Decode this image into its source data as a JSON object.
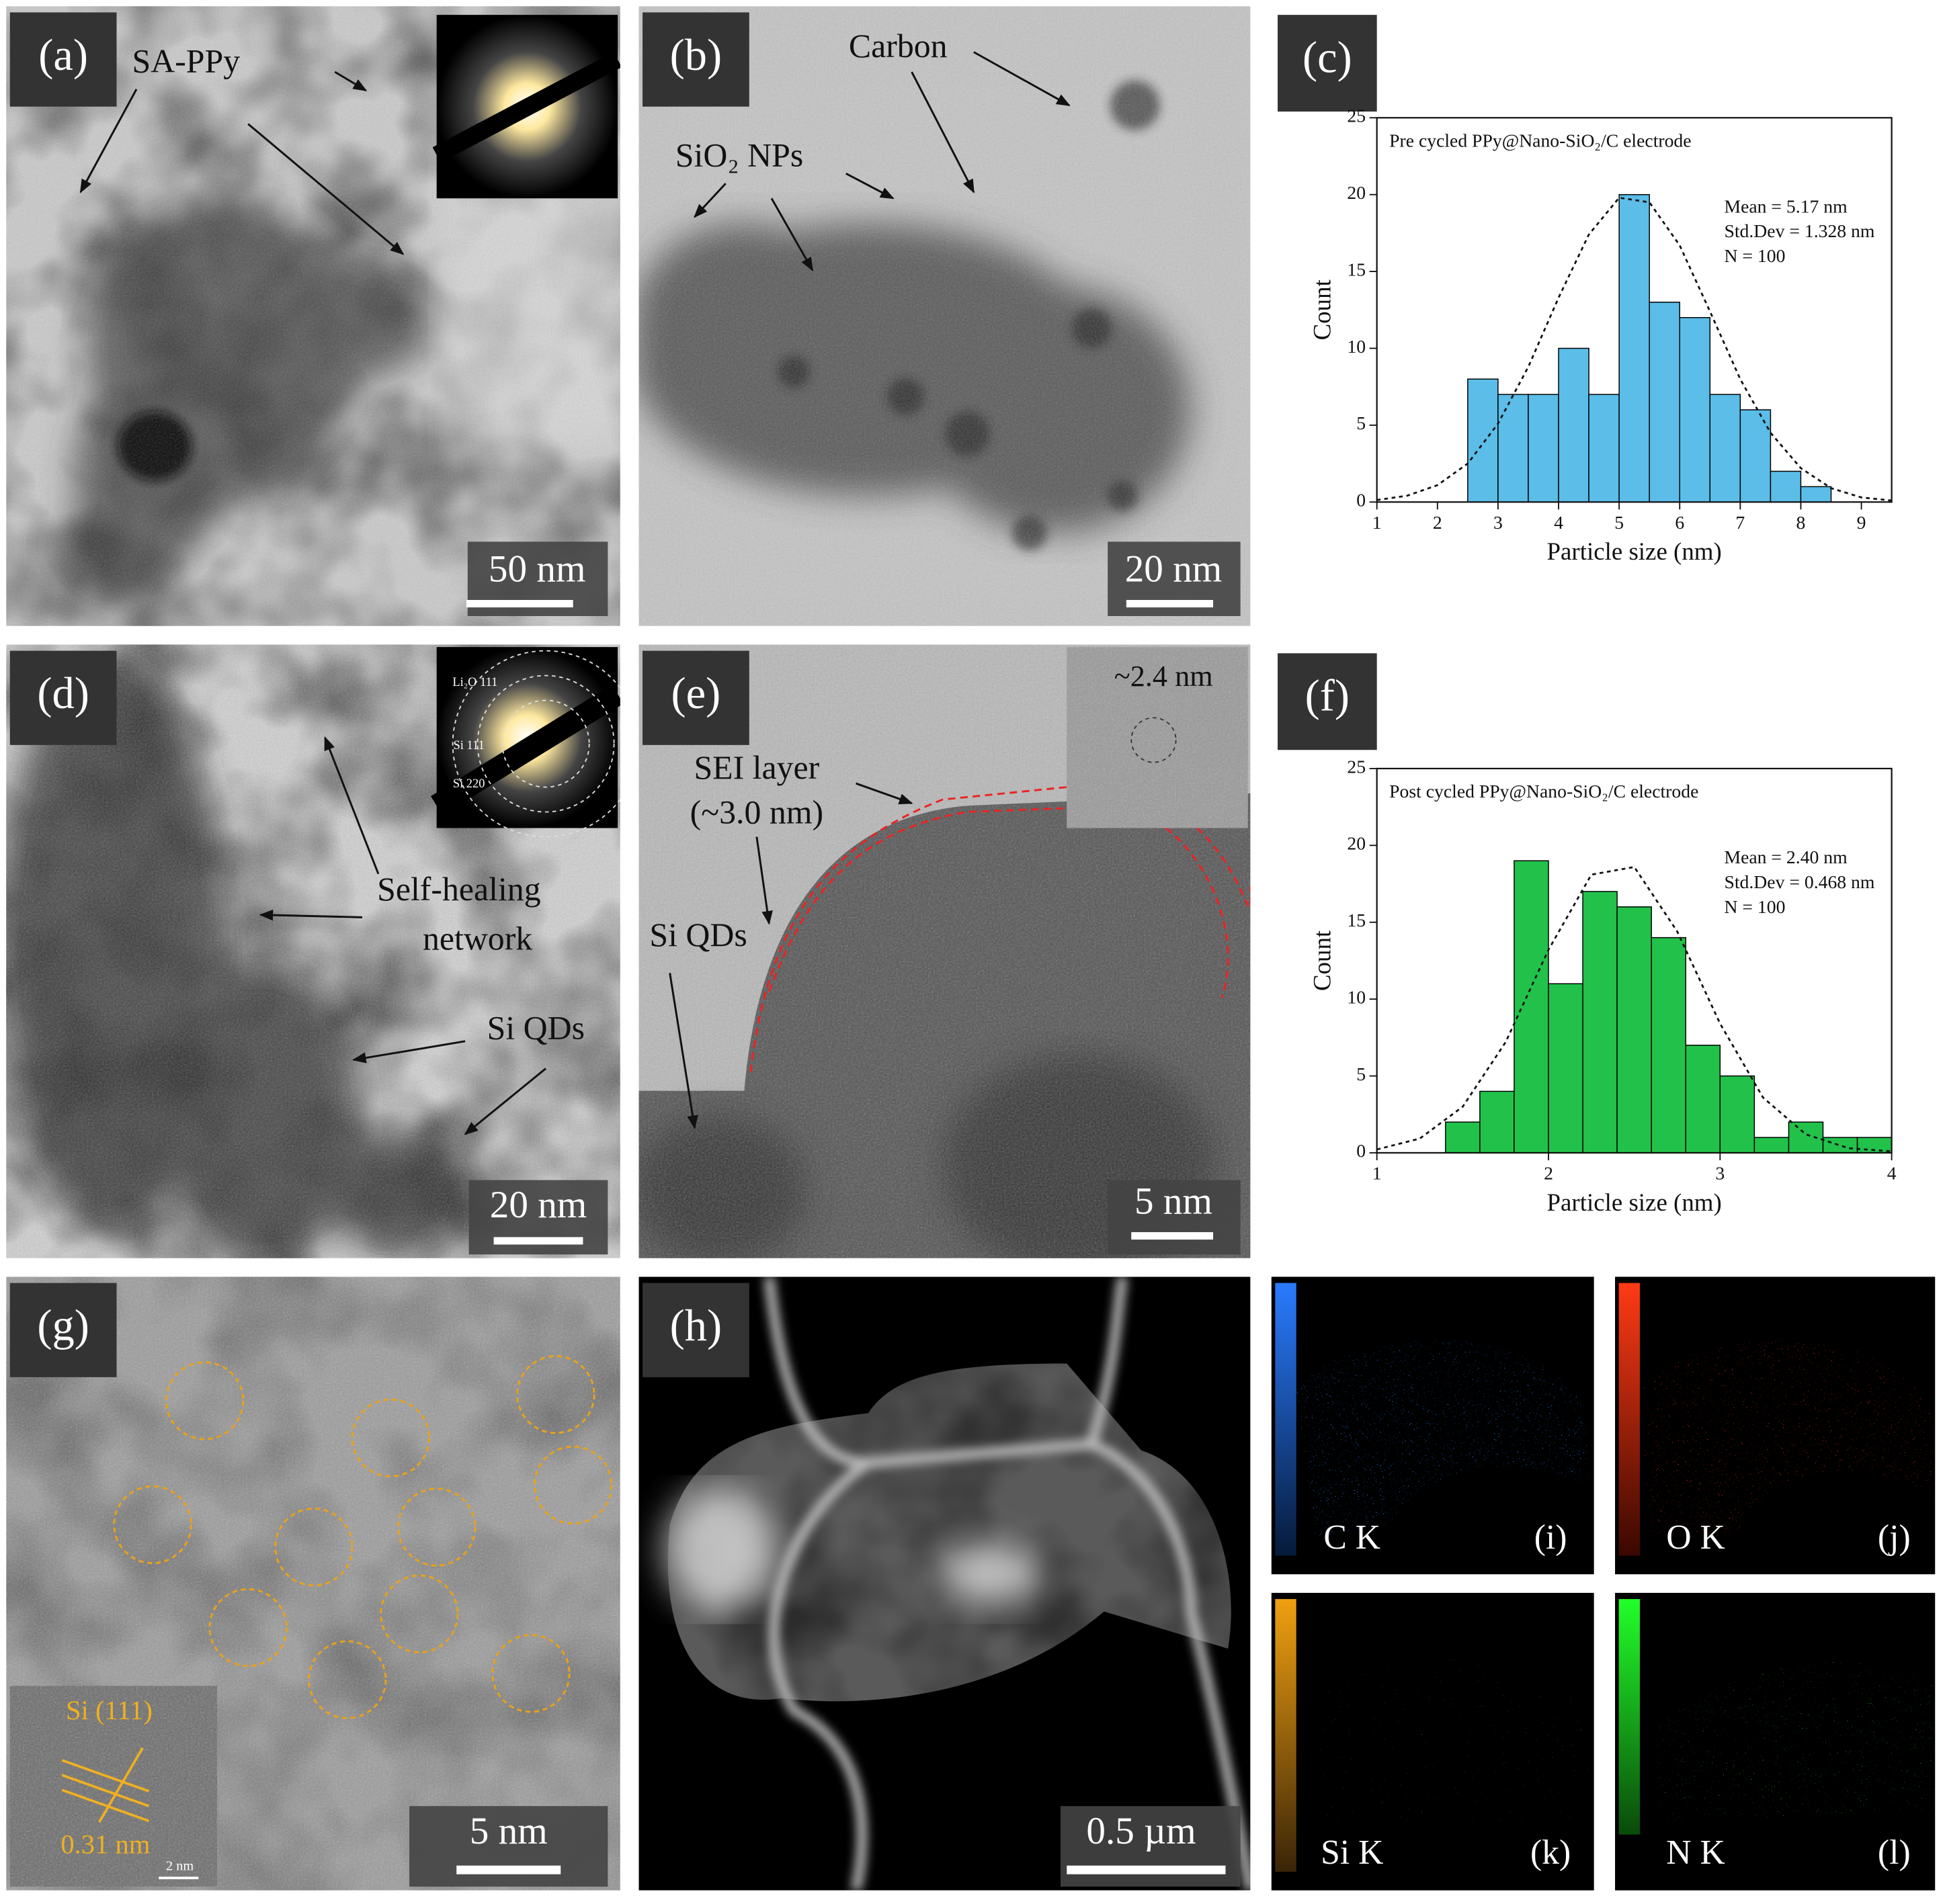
{
  "panels": {
    "a": {
      "label": "(a)",
      "annotations": [
        "SA-PPy"
      ],
      "scale_bar": "50 nm"
    },
    "b": {
      "label": "(b)",
      "annotations": [
        "Carbon",
        "SiO₂ NPs"
      ],
      "scale_bar": "20 nm"
    },
    "d": {
      "label": "(d)",
      "inset_labels": [
        "Li₂O 111",
        "Si 111",
        "Si 220"
      ],
      "annotations": [
        "Self-healing",
        "network",
        "Si QDs"
      ],
      "scale_bar": "20 nm"
    },
    "e": {
      "label": "(e)",
      "inset_label": "~2.4 nm",
      "annotations": [
        "SEI layer",
        "(~3.0 nm)",
        "Si QDs"
      ],
      "scale_bar": "5 nm"
    },
    "g": {
      "label": "(g)",
      "inset_labels": [
        "Si (111)",
        "0.31 nm",
        "2 nm"
      ],
      "scale_bar": "5 nm"
    },
    "h": {
      "label": "(h)",
      "scale_bar": "0.5 µm"
    },
    "i": {
      "element": "C K",
      "label": "(i)"
    },
    "j": {
      "element": "O K",
      "label": "(j)"
    },
    "k": {
      "element": "Si K",
      "label": "(k)"
    },
    "l": {
      "element": "N K",
      "label": "(l)"
    }
  },
  "chart_data": [
    {
      "type": "histogram",
      "panel_label": "(c)",
      "title": "Pre cycled PPy@Nano-SiO₂/C electrode",
      "annotations": [
        "Mean = 5.17 nm",
        "Std.Dev = 1.328 nm",
        "N = 100"
      ],
      "x_label": "Particle size (nm)",
      "y_label": "Count",
      "bins": [
        2.5,
        3,
        3.5,
        4,
        4.5,
        5,
        5.5,
        6,
        6.5,
        7,
        7.5,
        8,
        8.5
      ],
      "values": [
        8,
        7,
        7,
        10,
        7,
        20,
        13,
        12,
        7,
        6,
        2,
        1
      ],
      "color": "#5bbde8",
      "fit": {
        "x": [
          1,
          1.5,
          2,
          2.5,
          3,
          3.5,
          4,
          4.5,
          5,
          5.5,
          6,
          6.5,
          7,
          7.5,
          8,
          8.5,
          9,
          9.5
        ],
        "y": [
          0.13,
          0.41,
          1.1,
          2.5,
          5.1,
          8.8,
          13.3,
          17.4,
          19.8,
          19.5,
          16.7,
          12.4,
          8,
          4.5,
          2.2,
          0.9,
          0.3,
          0.1
        ]
      },
      "xlim": [
        1,
        9.5
      ],
      "ylim": [
        0,
        25
      ],
      "xticks": [
        1,
        2,
        3,
        4,
        5,
        6,
        7,
        8,
        9
      ],
      "yticks": [
        0,
        5,
        10,
        15,
        20,
        25
      ]
    },
    {
      "type": "histogram",
      "panel_label": "(f)",
      "title": "Post cycled PPy@Nano-SiO₂/C electrode",
      "annotations": [
        "Mean = 2.40 nm",
        "Std.Dev = 0.468 nm",
        "N = 100"
      ],
      "x_label": "Particle size (nm)",
      "y_label": "Count",
      "bins": [
        1.4,
        1.6,
        1.8,
        2,
        2.2,
        2.4,
        2.6,
        2.8,
        3,
        3.2,
        3.4,
        3.6,
        3.8,
        4
      ],
      "values": [
        2,
        4,
        19,
        11,
        17,
        16,
        14,
        7,
        5,
        1,
        2,
        1,
        1
      ],
      "color": "#22c24a",
      "fit": {
        "x": [
          1,
          1.25,
          1.5,
          1.75,
          2,
          2.25,
          2.5,
          2.75,
          3,
          3.25,
          3.5,
          3.75,
          4
        ],
        "y": [
          0.22,
          0.93,
          3,
          7.2,
          13.2,
          18.1,
          18.6,
          14.4,
          8.4,
          3.6,
          1.2,
          0.3,
          0.1
        ]
      },
      "xlim": [
        1,
        4
      ],
      "ylim": [
        0,
        25
      ],
      "xticks": [
        1,
        2,
        3,
        4
      ],
      "yticks": [
        0,
        5,
        10,
        15,
        20,
        25
      ]
    }
  ]
}
